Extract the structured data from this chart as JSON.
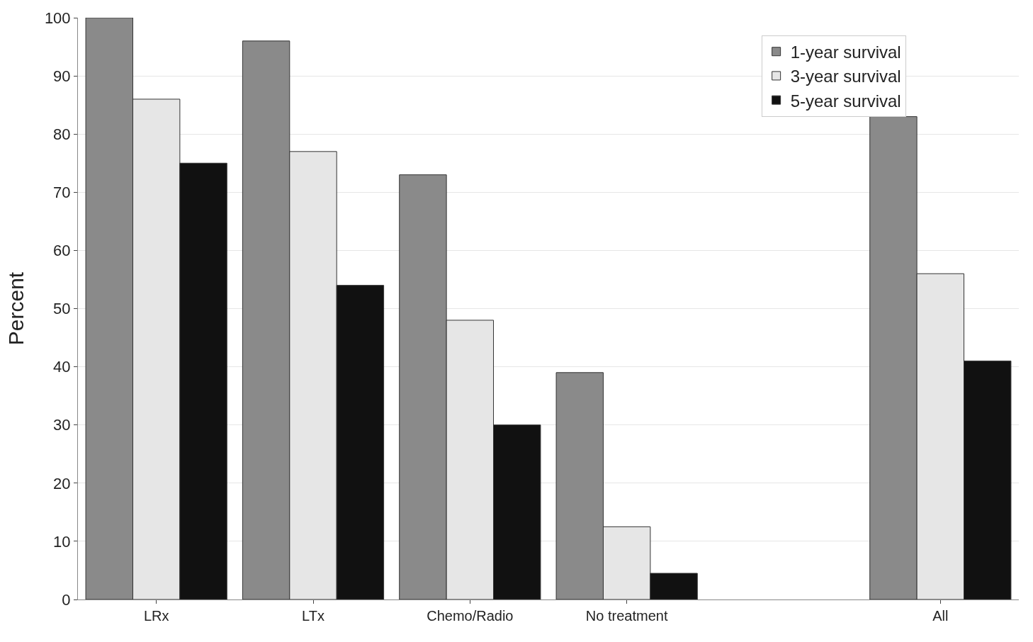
{
  "chart_data": {
    "type": "bar",
    "ylabel": "Percent",
    "categories": [
      "LRx",
      "LTx",
      "Chemo/Radio",
      "No treatment",
      null,
      "All"
    ],
    "series": [
      {
        "name": "1-year survival",
        "color": "#8a8a8a",
        "values": [
          100,
          96,
          73,
          39,
          null,
          83
        ]
      },
      {
        "name": "3-year survival",
        "color": "#e6e6e6",
        "values": [
          86,
          77,
          48,
          12.5,
          null,
          56
        ]
      },
      {
        "name": "5-year survival",
        "color": "#111111",
        "values": [
          75,
          54,
          30,
          4.5,
          null,
          41
        ]
      }
    ],
    "ylim": [
      0,
      100
    ],
    "yticks": [
      0,
      10,
      20,
      30,
      40,
      50,
      60,
      70,
      80,
      90,
      100
    ],
    "grid": "y",
    "legend": "top right"
  }
}
